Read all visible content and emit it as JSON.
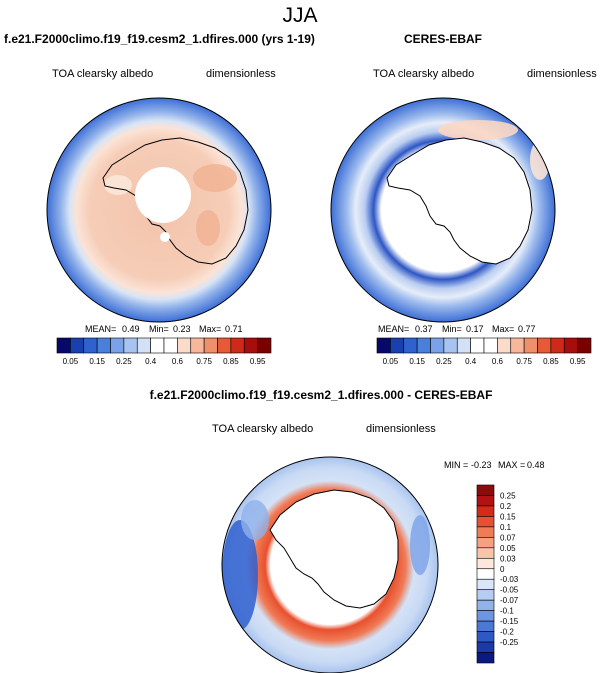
{
  "figure_title": "JJA",
  "colors": {
    "ocean_ring": "#3d6fd6",
    "coast": "#000000",
    "outline": "#000000"
  },
  "chart_data": [
    {
      "type": "heatmap",
      "title": "f.e21.F2000climo.f19_f19.cesm2_1.dfires.000 (yrs 1-19)",
      "left_label": "TOA clearsky albedo",
      "right_label": "dimensionless",
      "projection": "south-polar-stereographic",
      "stats": {
        "mean_label": "MEAN=",
        "mean": "0.49",
        "min_label": "Min=",
        "min": "0.23",
        "max_label": "Max=",
        "max": "0.71"
      },
      "colorbar": {
        "orientation": "horizontal",
        "ticks": [
          "0.05",
          "0.15",
          "0.25",
          "0.4",
          "0.6",
          "0.75",
          "0.85",
          "0.95"
        ],
        "colors": [
          "#08086b",
          "#1a3fb0",
          "#2f62cf",
          "#4a7fdc",
          "#7ba2e8",
          "#a8c3ef",
          "#d3e1f6",
          "#ffffff",
          "#ffffff",
          "#fbdccb",
          "#f6b79c",
          "#f0906b",
          "#e65a36",
          "#cf2a17",
          "#a80d0d",
          "#7a0000"
        ]
      }
    },
    {
      "type": "heatmap",
      "title": "CERES-EBAF",
      "left_label": "TOA clearsky albedo",
      "right_label": "dimensionless",
      "projection": "south-polar-stereographic",
      "stats": {
        "mean_label": "MEAN=",
        "mean": "0.37",
        "min_label": "Min=",
        "min": "0.17",
        "max_label": "Max=",
        "max": "0.77"
      },
      "colorbar": {
        "orientation": "horizontal",
        "ticks": [
          "0.05",
          "0.15",
          "0.25",
          "0.4",
          "0.6",
          "0.75",
          "0.85",
          "0.95"
        ],
        "colors": [
          "#08086b",
          "#1a3fb0",
          "#2f62cf",
          "#4a7fdc",
          "#7ba2e8",
          "#a8c3ef",
          "#d3e1f6",
          "#ffffff",
          "#ffffff",
          "#fbdccb",
          "#f6b79c",
          "#f0906b",
          "#e65a36",
          "#cf2a17",
          "#a80d0d",
          "#7a0000"
        ]
      }
    },
    {
      "type": "heatmap",
      "title": "f.e21.F2000climo.f19_f19.cesm2_1.dfires.000 - CERES-EBAF",
      "left_label": "TOA clearsky albedo",
      "right_label": "dimensionless",
      "projection": "south-polar-stereographic",
      "stats": {
        "min_label": "MIN =",
        "min": "-0.23",
        "max_label": "MAX =",
        "max": "0.48"
      },
      "colorbar": {
        "orientation": "vertical",
        "ticks": [
          "0.25",
          "0.2",
          "0.15",
          "0.1",
          "0.07",
          "0.05",
          "0.03",
          "0",
          "-0.03",
          "-0.05",
          "-0.07",
          "-0.1",
          "-0.15",
          "-0.2",
          "-0.25"
        ],
        "colors": [
          "#8e0b0b",
          "#b21212",
          "#d42a16",
          "#e8512f",
          "#f07c55",
          "#f5a07e",
          "#f9c4aa",
          "#fde6da",
          "#ffffff",
          "#d9e5f8",
          "#b6ccf1",
          "#92b2ea",
          "#6e95e1",
          "#4a78d6",
          "#2e58c4",
          "#1a3aa8",
          "#0a1a80"
        ]
      }
    }
  ]
}
